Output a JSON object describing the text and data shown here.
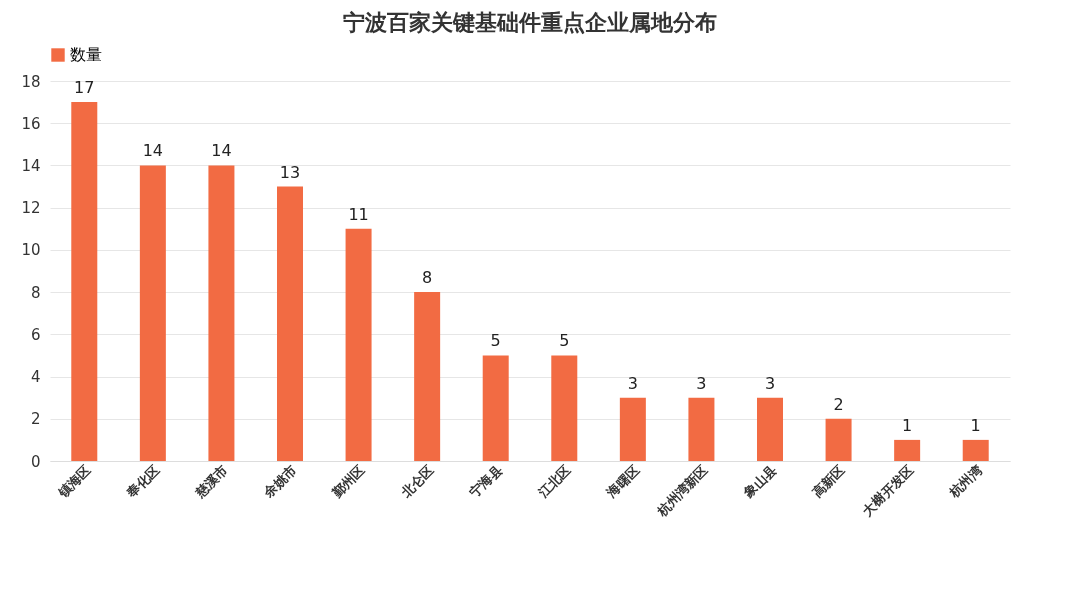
{
  "chart_data": {
    "type": "bar",
    "title": "宁波百家关键基础件重点企业属地分布",
    "categories": [
      "镇海区",
      "奉化区",
      "慈溪市",
      "余姚市",
      "鄞州区",
      "北仑区",
      "宁海县",
      "江北区",
      "海曙区",
      "杭州湾新区",
      "象山县",
      "高新区",
      "大榭开发区",
      "杭州湾"
    ],
    "series": [
      {
        "name": "数量",
        "color": "#f26b43",
        "values": [
          17,
          14,
          14,
          13,
          11,
          8,
          5,
          5,
          3,
          3,
          3,
          2,
          1,
          1
        ]
      }
    ],
    "ylim": [
      0,
      18
    ],
    "yticks": [
      0,
      2,
      4,
      6,
      8,
      10,
      12,
      14,
      16,
      18
    ],
    "grid": "y",
    "legend": "top",
    "data_labels": true
  }
}
